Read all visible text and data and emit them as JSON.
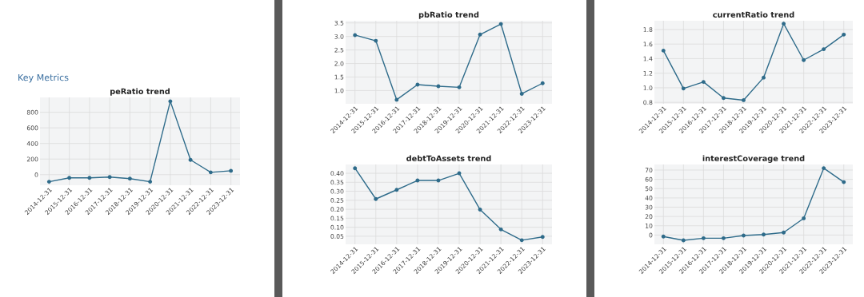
{
  "chart_data": [
    {
      "type": "line",
      "title": "peRatio trend",
      "annotations": [
        "Key Metrics"
      ],
      "categories": [
        "2014-12-31",
        "2015-12-31",
        "2016-12-31",
        "2017-12-31",
        "2018-12-31",
        "2019-12-31",
        "2020-12-31",
        "2021-12-31",
        "2022-12-31",
        "2023-12-31"
      ],
      "series": [
        {
          "color": "#2e6b8a",
          "values": [
            -90,
            -40,
            -40,
            -30,
            -50,
            -90,
            940,
            190,
            30,
            50
          ]
        }
      ],
      "ylim": [
        -135,
        990
      ],
      "yticks": [
        0,
        200,
        400,
        600,
        800
      ],
      "grid": true,
      "marker": "circle",
      "line_style": "solid"
    },
    {
      "type": "line",
      "title": "pbRatio trend",
      "categories": [
        "2014-12-31",
        "2015-12-31",
        "2016-12-31",
        "2017-12-31",
        "2018-12-31",
        "2019-12-31",
        "2020-12-31",
        "2021-12-31",
        "2022-12-31",
        "2023-12-31"
      ],
      "series": [
        {
          "color": "#2e6b8a",
          "values": [
            3.05,
            2.84,
            0.66,
            1.22,
            1.16,
            1.12,
            3.07,
            3.46,
            0.88,
            1.27
          ]
        }
      ],
      "ylim": [
        0.51,
        3.58
      ],
      "yticks": [
        {
          "value": 1.0,
          "label": "1.0"
        },
        {
          "value": 1.5,
          "label": "1.5"
        },
        {
          "value": 2.0,
          "label": "2.0"
        },
        {
          "value": 2.5,
          "label": "2.5"
        },
        {
          "value": 3.0,
          "label": "3.0"
        },
        {
          "value": 3.5,
          "label": "3.5"
        }
      ],
      "grid": true,
      "marker": "circle",
      "line_style": "solid"
    },
    {
      "type": "line",
      "title": "debtToAssets trend",
      "categories": [
        "2014-12-31",
        "2015-12-31",
        "2016-12-31",
        "2017-12-31",
        "2018-12-31",
        "2019-12-31",
        "2020-12-31",
        "2021-12-31",
        "2022-12-31",
        "2023-12-31"
      ],
      "series": [
        {
          "color": "#2e6b8a",
          "values": [
            0.428,
            0.257,
            0.308,
            0.36,
            0.36,
            0.4,
            0.198,
            0.088,
            0.028,
            0.046
          ]
        }
      ],
      "ylim": [
        0.005,
        0.449
      ],
      "yticks": [
        {
          "value": 0.05,
          "label": "0.05"
        },
        {
          "value": 0.1,
          "label": "0.10"
        },
        {
          "value": 0.15,
          "label": "0.15"
        },
        {
          "value": 0.2,
          "label": "0.20"
        },
        {
          "value": 0.25,
          "label": "0.25"
        },
        {
          "value": 0.3,
          "label": "0.30"
        },
        {
          "value": 0.35,
          "label": "0.35"
        },
        {
          "value": 0.4,
          "label": "0.40"
        }
      ],
      "grid": true,
      "marker": "circle",
      "line_style": "solid"
    },
    {
      "type": "line",
      "title": "currentRatio trend",
      "categories": [
        "2014-12-31",
        "2015-12-31",
        "2016-12-31",
        "2017-12-31",
        "2018-12-31",
        "2019-12-31",
        "2020-12-31",
        "2021-12-31",
        "2022-12-31",
        "2023-12-31"
      ],
      "series": [
        {
          "color": "#2e6b8a",
          "values": [
            1.51,
            0.99,
            1.08,
            0.86,
            0.83,
            1.14,
            1.88,
            1.38,
            1.53,
            1.73
          ]
        }
      ],
      "ylim": [
        0.78,
        1.92
      ],
      "yticks": [
        {
          "value": 0.8,
          "label": "0.8"
        },
        {
          "value": 1.0,
          "label": "1.0"
        },
        {
          "value": 1.2,
          "label": "1.2"
        },
        {
          "value": 1.4,
          "label": "1.4"
        },
        {
          "value": 1.6,
          "label": "1.6"
        },
        {
          "value": 1.8,
          "label": "1.8"
        }
      ],
      "grid": true,
      "marker": "circle",
      "line_style": "solid"
    },
    {
      "type": "line",
      "title": "interestCoverage trend",
      "categories": [
        "2014-12-31",
        "2015-12-31",
        "2016-12-31",
        "2017-12-31",
        "2018-12-31",
        "2019-12-31",
        "2020-12-31",
        "2021-12-31",
        "2022-12-31",
        "2023-12-31"
      ],
      "series": [
        {
          "color": "#2e6b8a",
          "values": [
            -1.6,
            -5.7,
            -3.4,
            -3.4,
            -0.5,
            0.5,
            2.7,
            18,
            72,
            57
          ]
        }
      ],
      "ylim": [
        -10,
        76
      ],
      "yticks": [
        0,
        10,
        20,
        30,
        40,
        50,
        60,
        70
      ],
      "grid": true,
      "marker": "circle",
      "line_style": "solid"
    }
  ]
}
